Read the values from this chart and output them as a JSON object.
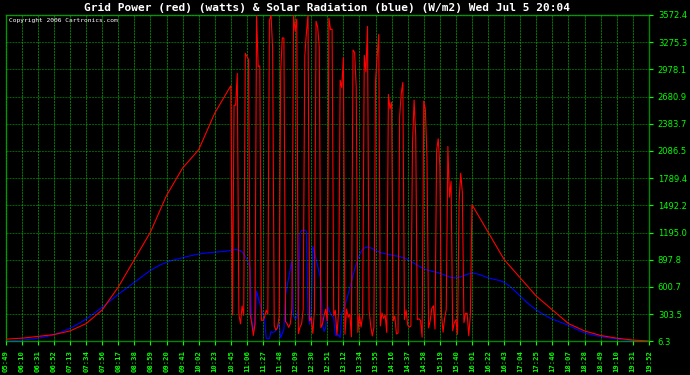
{
  "title": "Grid Power (red) (watts) & Solar Radiation (blue) (W/m2) Wed Jul 5 20:04",
  "copyright": "Copyright 2006 Cartronics.com",
  "bg_color": "#000000",
  "plot_bg_color": "#000000",
  "grid_color": "#00bb00",
  "title_color": "#ffffff",
  "tick_color": "#00ff00",
  "ytick_color": "#00ff00",
  "red_color": "#ff0000",
  "blue_color": "#0000ff",
  "ymin": 6.3,
  "ymax": 3572.4,
  "yticks": [
    6.3,
    303.5,
    600.7,
    897.8,
    1195.0,
    1492.2,
    1789.4,
    2086.5,
    2383.7,
    2680.9,
    2978.1,
    3275.3,
    3572.4
  ],
  "xtick_labels": [
    "05:49",
    "06:10",
    "06:31",
    "06:52",
    "07:13",
    "07:34",
    "07:56",
    "08:17",
    "08:38",
    "08:59",
    "09:20",
    "09:41",
    "10:02",
    "10:23",
    "10:45",
    "11:06",
    "11:27",
    "11:48",
    "12:09",
    "12:30",
    "12:51",
    "13:12",
    "13:34",
    "13:55",
    "14:16",
    "14:37",
    "14:58",
    "15:19",
    "15:40",
    "16:01",
    "16:22",
    "16:43",
    "17:04",
    "17:25",
    "17:46",
    "18:07",
    "18:28",
    "18:49",
    "19:10",
    "19:31",
    "19:52"
  ]
}
